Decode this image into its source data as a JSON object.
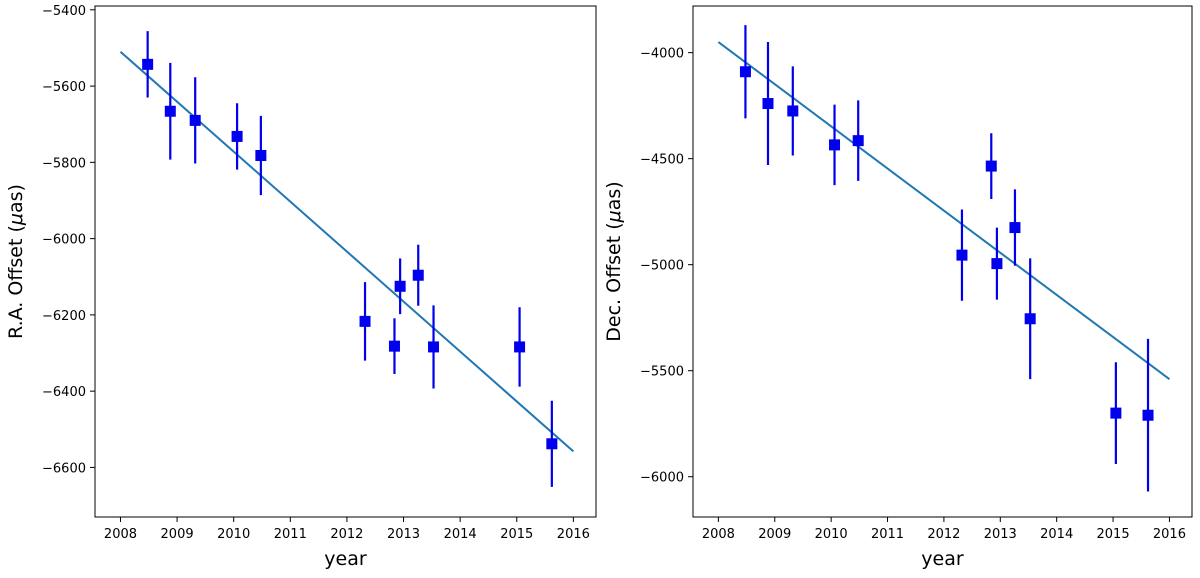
{
  "chart_data": [
    {
      "type": "scatter",
      "xlabel": "year",
      "ylabel_prefix": "R.A. Offset (",
      "ylabel_mu": "μ",
      "ylabel_suffix": "as)",
      "xlim": [
        2007.55,
        2016.4
      ],
      "ylim": [
        -6730,
        -5390
      ],
      "xticks": [
        2008,
        2009,
        2010,
        2011,
        2012,
        2013,
        2014,
        2015,
        2016
      ],
      "yticks": [
        -6600,
        -6400,
        -6200,
        -6000,
        -5800,
        -5600,
        -5400
      ],
      "grid": false,
      "marker_color": "#0000ee",
      "line_color": "#1f77b4",
      "points": [
        {
          "x": 2008.48,
          "y": -5543,
          "err": 87
        },
        {
          "x": 2008.88,
          "y": -5666,
          "err": 127
        },
        {
          "x": 2009.32,
          "y": -5690,
          "err": 113
        },
        {
          "x": 2010.06,
          "y": -5732,
          "err": 87
        },
        {
          "x": 2010.48,
          "y": -5782,
          "err": 104
        },
        {
          "x": 2012.32,
          "y": -6217,
          "err": 103
        },
        {
          "x": 2012.84,
          "y": -6282,
          "err": 73
        },
        {
          "x": 2012.94,
          "y": -6125,
          "err": 73
        },
        {
          "x": 2013.26,
          "y": -6096,
          "err": 80
        },
        {
          "x": 2013.53,
          "y": -6284,
          "err": 109
        },
        {
          "x": 2015.05,
          "y": -6284,
          "err": 104
        },
        {
          "x": 2015.62,
          "y": -6538,
          "err": 113
        }
      ],
      "fit_line": {
        "x": [
          2008.0,
          2016.0
        ],
        "y": [
          -5510,
          -6558
        ]
      }
    },
    {
      "type": "scatter",
      "xlabel": "year",
      "ylabel_prefix": "Dec. Offset (",
      "ylabel_mu": "μ",
      "ylabel_suffix": "as)",
      "xlim": [
        2007.55,
        2016.4
      ],
      "ylim": [
        -6190,
        -3780
      ],
      "xticks": [
        2008,
        2009,
        2010,
        2011,
        2012,
        2013,
        2014,
        2015,
        2016
      ],
      "yticks": [
        -6000,
        -5500,
        -5000,
        -4500,
        -4000
      ],
      "grid": false,
      "marker_color": "#0000ee",
      "line_color": "#1f77b4",
      "points": [
        {
          "x": 2008.48,
          "y": -4090,
          "err": 220
        },
        {
          "x": 2008.88,
          "y": -4240,
          "err": 290
        },
        {
          "x": 2009.32,
          "y": -4275,
          "err": 210
        },
        {
          "x": 2010.06,
          "y": -4435,
          "err": 190
        },
        {
          "x": 2010.48,
          "y": -4415,
          "err": 190
        },
        {
          "x": 2012.32,
          "y": -4955,
          "err": 215
        },
        {
          "x": 2012.84,
          "y": -4535,
          "err": 155
        },
        {
          "x": 2012.94,
          "y": -4995,
          "err": 170
        },
        {
          "x": 2013.26,
          "y": -4825,
          "err": 180
        },
        {
          "x": 2013.53,
          "y": -5255,
          "err": 285
        },
        {
          "x": 2015.05,
          "y": -5700,
          "err": 240
        },
        {
          "x": 2015.62,
          "y": -5710,
          "err": 360
        }
      ],
      "fit_line": {
        "x": [
          2008.0,
          2016.0
        ],
        "y": [
          -3950,
          -5540
        ]
      }
    }
  ]
}
